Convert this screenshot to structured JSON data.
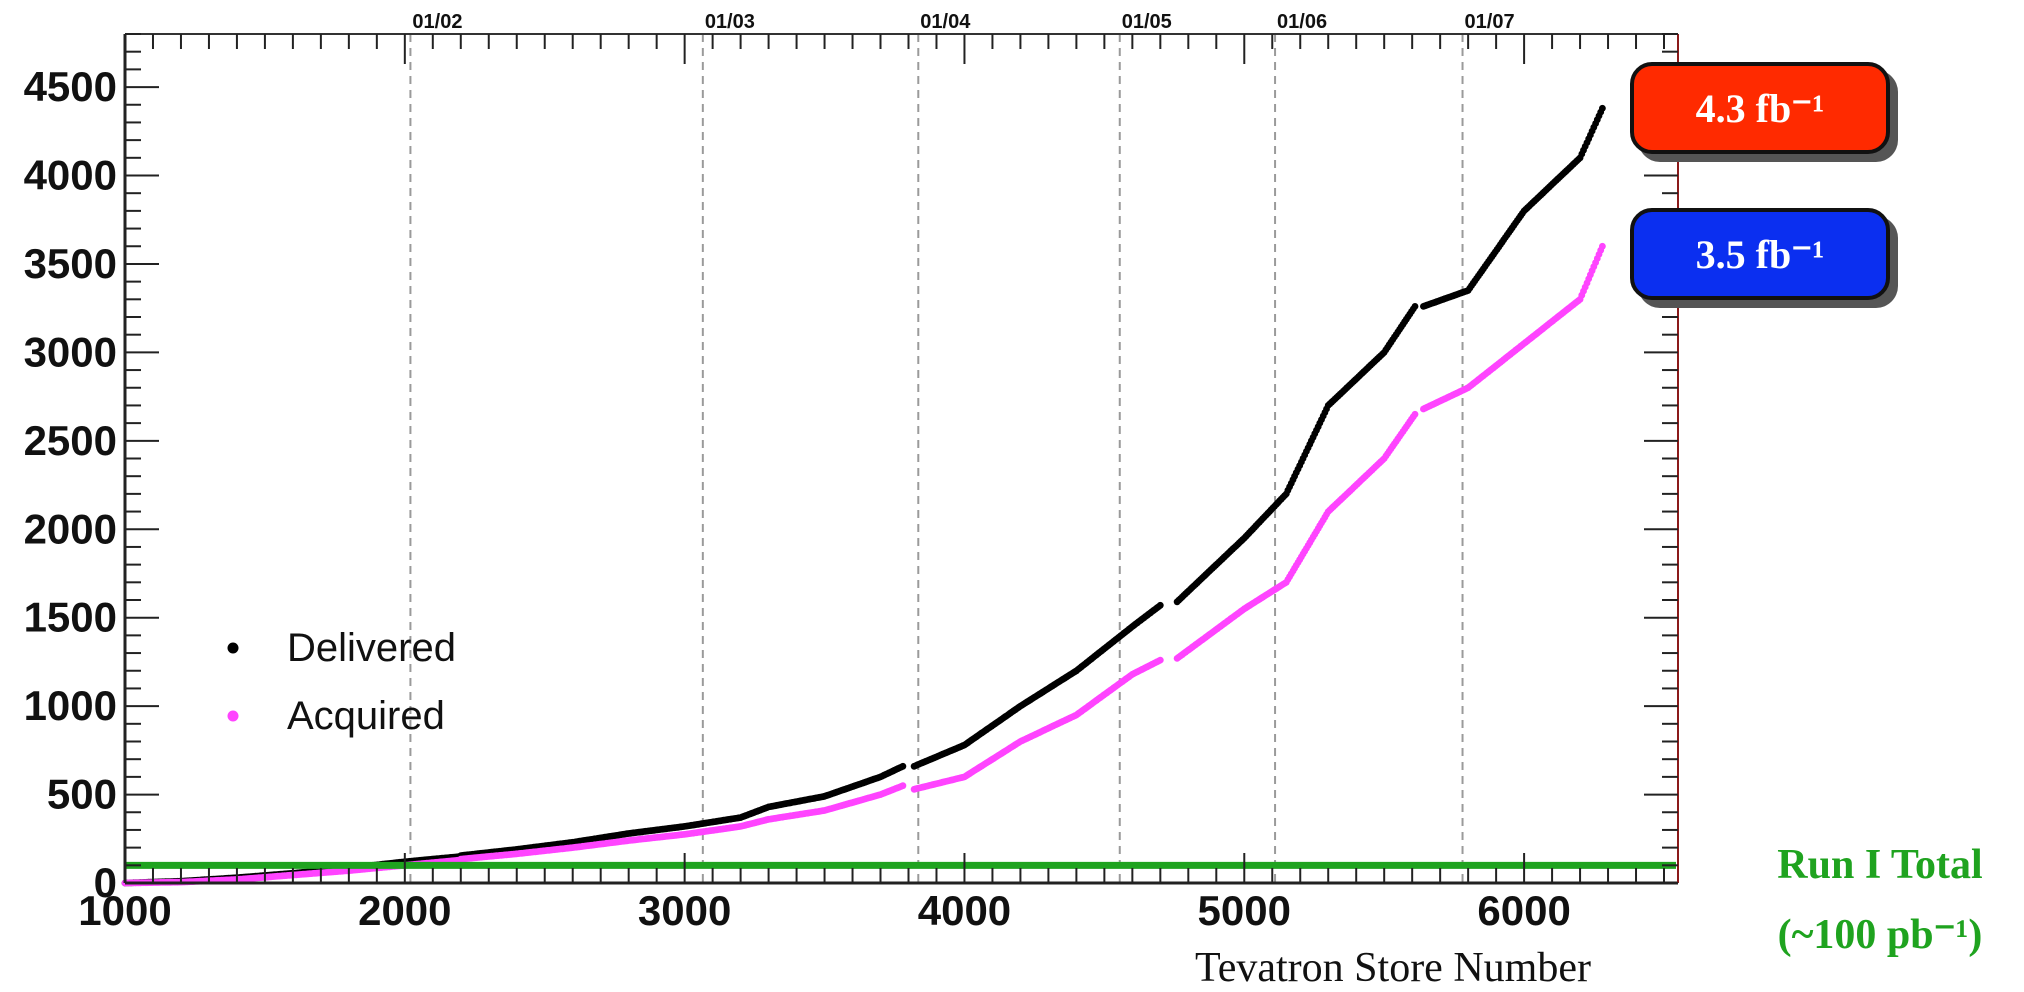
{
  "chart_data": {
    "type": "scatter",
    "xlabel": "Tevatron Store Number",
    "ylabel": "",
    "xlim": [
      1000,
      6550
    ],
    "ylim": [
      0,
      4800
    ],
    "x_ticks": [
      1000,
      2000,
      3000,
      4000,
      5000,
      6000
    ],
    "y_ticks": [
      0,
      500,
      1000,
      1500,
      2000,
      2500,
      3000,
      3500,
      4000,
      4500
    ],
    "date_markers": [
      {
        "label": "01/02",
        "x": 2020
      },
      {
        "label": "01/03",
        "x": 3065
      },
      {
        "label": "01/04",
        "x": 3835
      },
      {
        "label": "01/05",
        "x": 4555
      },
      {
        "label": "01/06",
        "x": 5110
      },
      {
        "label": "01/07",
        "x": 5780
      }
    ],
    "legend_position": "middle-left",
    "series": [
      {
        "name": "Delivered",
        "color": "#000000",
        "segments": [
          [
            [
              1000,
              0
            ],
            [
              1200,
              10
            ],
            [
              1400,
              30
            ],
            [
              1600,
              55
            ],
            [
              1800,
              85
            ],
            [
              2000,
              120
            ],
            [
              2200,
              150
            ]
          ],
          [
            [
              2200,
              155
            ],
            [
              2400,
              190
            ],
            [
              2600,
              230
            ],
            [
              2800,
              280
            ],
            [
              3000,
              320
            ],
            [
              3200,
              370
            ],
            [
              3300,
              430
            ],
            [
              3500,
              490
            ],
            [
              3700,
              600
            ],
            [
              3780,
              660
            ]
          ],
          [
            [
              3820,
              660
            ],
            [
              4000,
              780
            ],
            [
              4200,
              1000
            ],
            [
              4400,
              1200
            ],
            [
              4600,
              1450
            ],
            [
              4700,
              1570
            ]
          ],
          [
            [
              4760,
              1590
            ],
            [
              5000,
              1950
            ],
            [
              5150,
              2200
            ],
            [
              5300,
              2700
            ],
            [
              5500,
              3000
            ],
            [
              5610,
              3260
            ]
          ],
          [
            [
              5640,
              3260
            ],
            [
              5800,
              3350
            ],
            [
              6000,
              3800
            ],
            [
              6200,
              4100
            ],
            [
              6280,
              4380
            ]
          ]
        ]
      },
      {
        "name": "Acquired",
        "color": "#ff44ff",
        "segments": [
          [
            [
              1000,
              0
            ],
            [
              1200,
              5
            ],
            [
              1400,
              20
            ],
            [
              1600,
              45
            ],
            [
              1800,
              70
            ],
            [
              2000,
              100
            ],
            [
              2200,
              130
            ]
          ],
          [
            [
              2200,
              135
            ],
            [
              2400,
              165
            ],
            [
              2600,
              200
            ],
            [
              2800,
              240
            ],
            [
              3000,
              275
            ],
            [
              3200,
              320
            ],
            [
              3300,
              360
            ],
            [
              3500,
              410
            ],
            [
              3700,
              500
            ],
            [
              3780,
              550
            ]
          ],
          [
            [
              3820,
              530
            ],
            [
              4000,
              600
            ],
            [
              4200,
              800
            ],
            [
              4400,
              950
            ],
            [
              4600,
              1180
            ],
            [
              4700,
              1260
            ]
          ],
          [
            [
              4760,
              1270
            ],
            [
              5000,
              1550
            ],
            [
              5150,
              1700
            ],
            [
              5300,
              2100
            ],
            [
              5500,
              2400
            ],
            [
              5610,
              2650
            ]
          ],
          [
            [
              5640,
              2680
            ],
            [
              5800,
              2800
            ],
            [
              6000,
              3050
            ],
            [
              6200,
              3300
            ],
            [
              6280,
              3600
            ]
          ]
        ]
      }
    ],
    "reference_line": {
      "name": "Run I Total",
      "value": 100,
      "color": "#1fa31f"
    }
  },
  "annotations": {
    "delivered_total": "4.3 fb⁻¹",
    "acquired_total": "3.5 fb⁻¹",
    "run1_line1": "Run I Total",
    "run1_line2": "(~100 pb⁻¹)"
  }
}
